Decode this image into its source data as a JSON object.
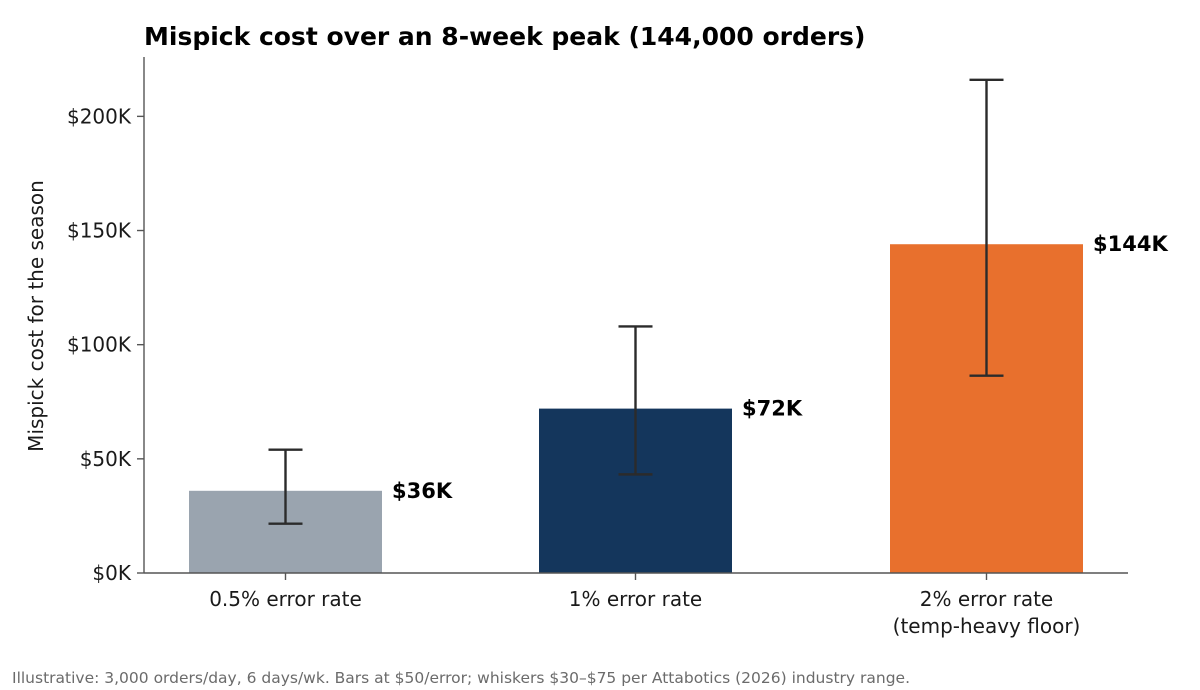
{
  "chart_data": {
    "type": "bar",
    "title": "Mispick cost over an 8-week peak (144,000 orders)",
    "xlabel": "",
    "ylabel": "Mispick cost for the season",
    "ylim": [
      0,
      226000
    ],
    "yticks": [
      0,
      50000,
      100000,
      150000,
      200000
    ],
    "ytick_labels": [
      "$0K",
      "$50K",
      "$100K",
      "$150K",
      "$200K"
    ],
    "categories": [
      [
        "0.5% error rate"
      ],
      [
        "1% error rate"
      ],
      [
        "2% error rate",
        "(temp-heavy floor)"
      ]
    ],
    "values": [
      36000,
      72000,
      144000
    ],
    "value_labels": [
      "$36K",
      "$72K",
      "$144K"
    ],
    "error_low": [
      21600,
      43200,
      86400
    ],
    "error_high": [
      54000,
      108000,
      216000
    ],
    "colors": [
      "#9aa4af",
      "#14365c",
      "#e8702d"
    ],
    "grid": false,
    "legend": "none",
    "footnote": "Illustrative: 3,000 orders/day, 6 days/wk. Bars at $50/error; whiskers $30–$75 per Attabotics (2026) industry range."
  }
}
